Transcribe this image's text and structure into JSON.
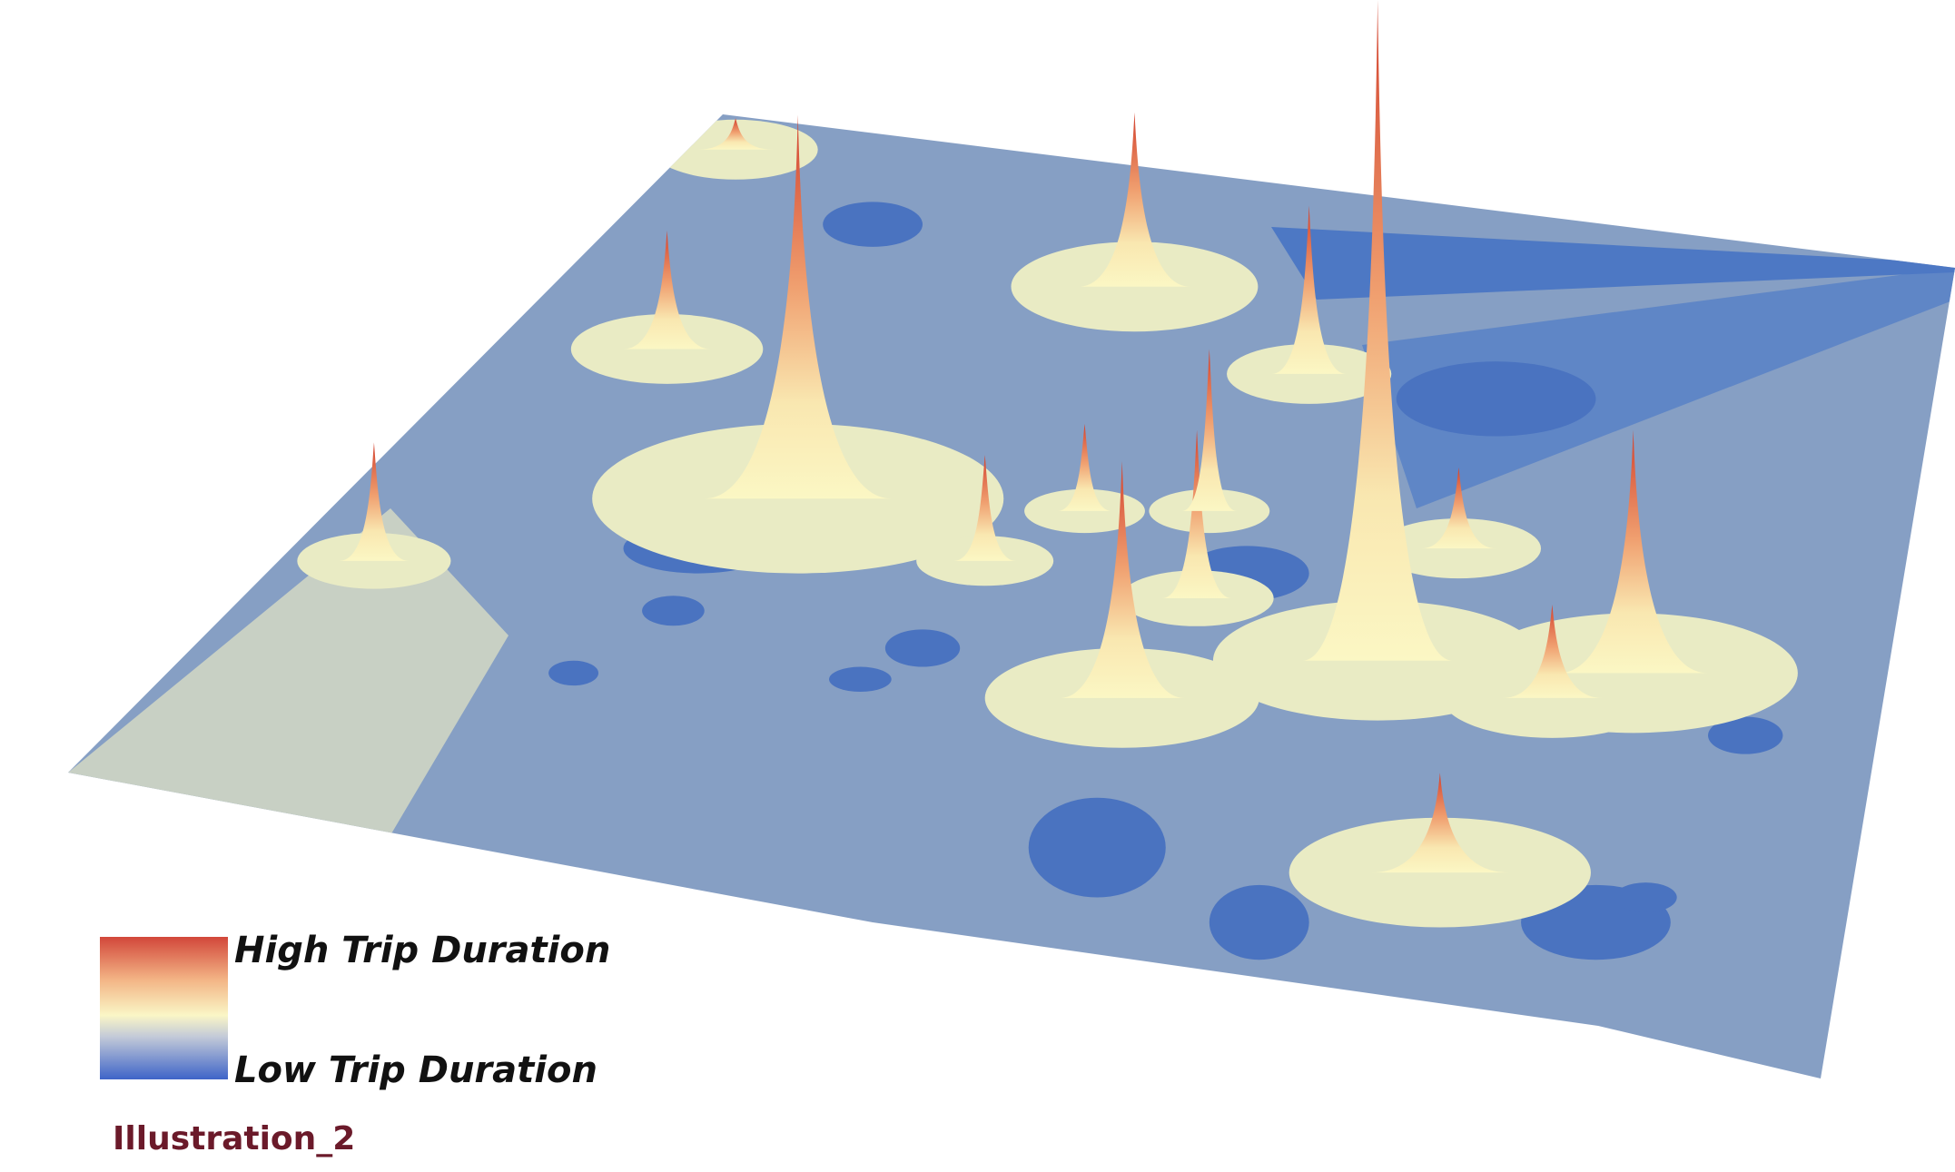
{
  "legend": {
    "high": "High Trip Duration",
    "low": "Low Trip Duration"
  },
  "caption": "Illustration_2"
}
